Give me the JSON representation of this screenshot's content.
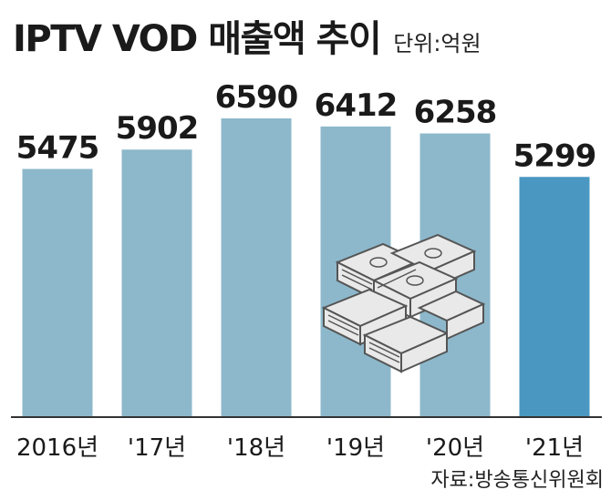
{
  "title": "IPTV VOD 매출액 추이",
  "unit_label": "단위:억원",
  "source": "자료:방송통신위원회",
  "colors": {
    "bar": "#8db8cb",
    "bar_highlight": "#4a98c2",
    "axis": "#333333",
    "text": "#1a1a1a"
  },
  "chart_data": {
    "type": "bar",
    "categories": [
      "2016년",
      "'17년",
      "'18년",
      "'19년",
      "'20년",
      "'21년"
    ],
    "values": [
      5475,
      5902,
      6590,
      6412,
      6258,
      5299
    ],
    "highlight_index": 5,
    "ylim": [
      0,
      6590
    ],
    "grid": false,
    "title": "IPTV VOD 매출액 추이",
    "xlabel": "",
    "ylabel": ""
  }
}
